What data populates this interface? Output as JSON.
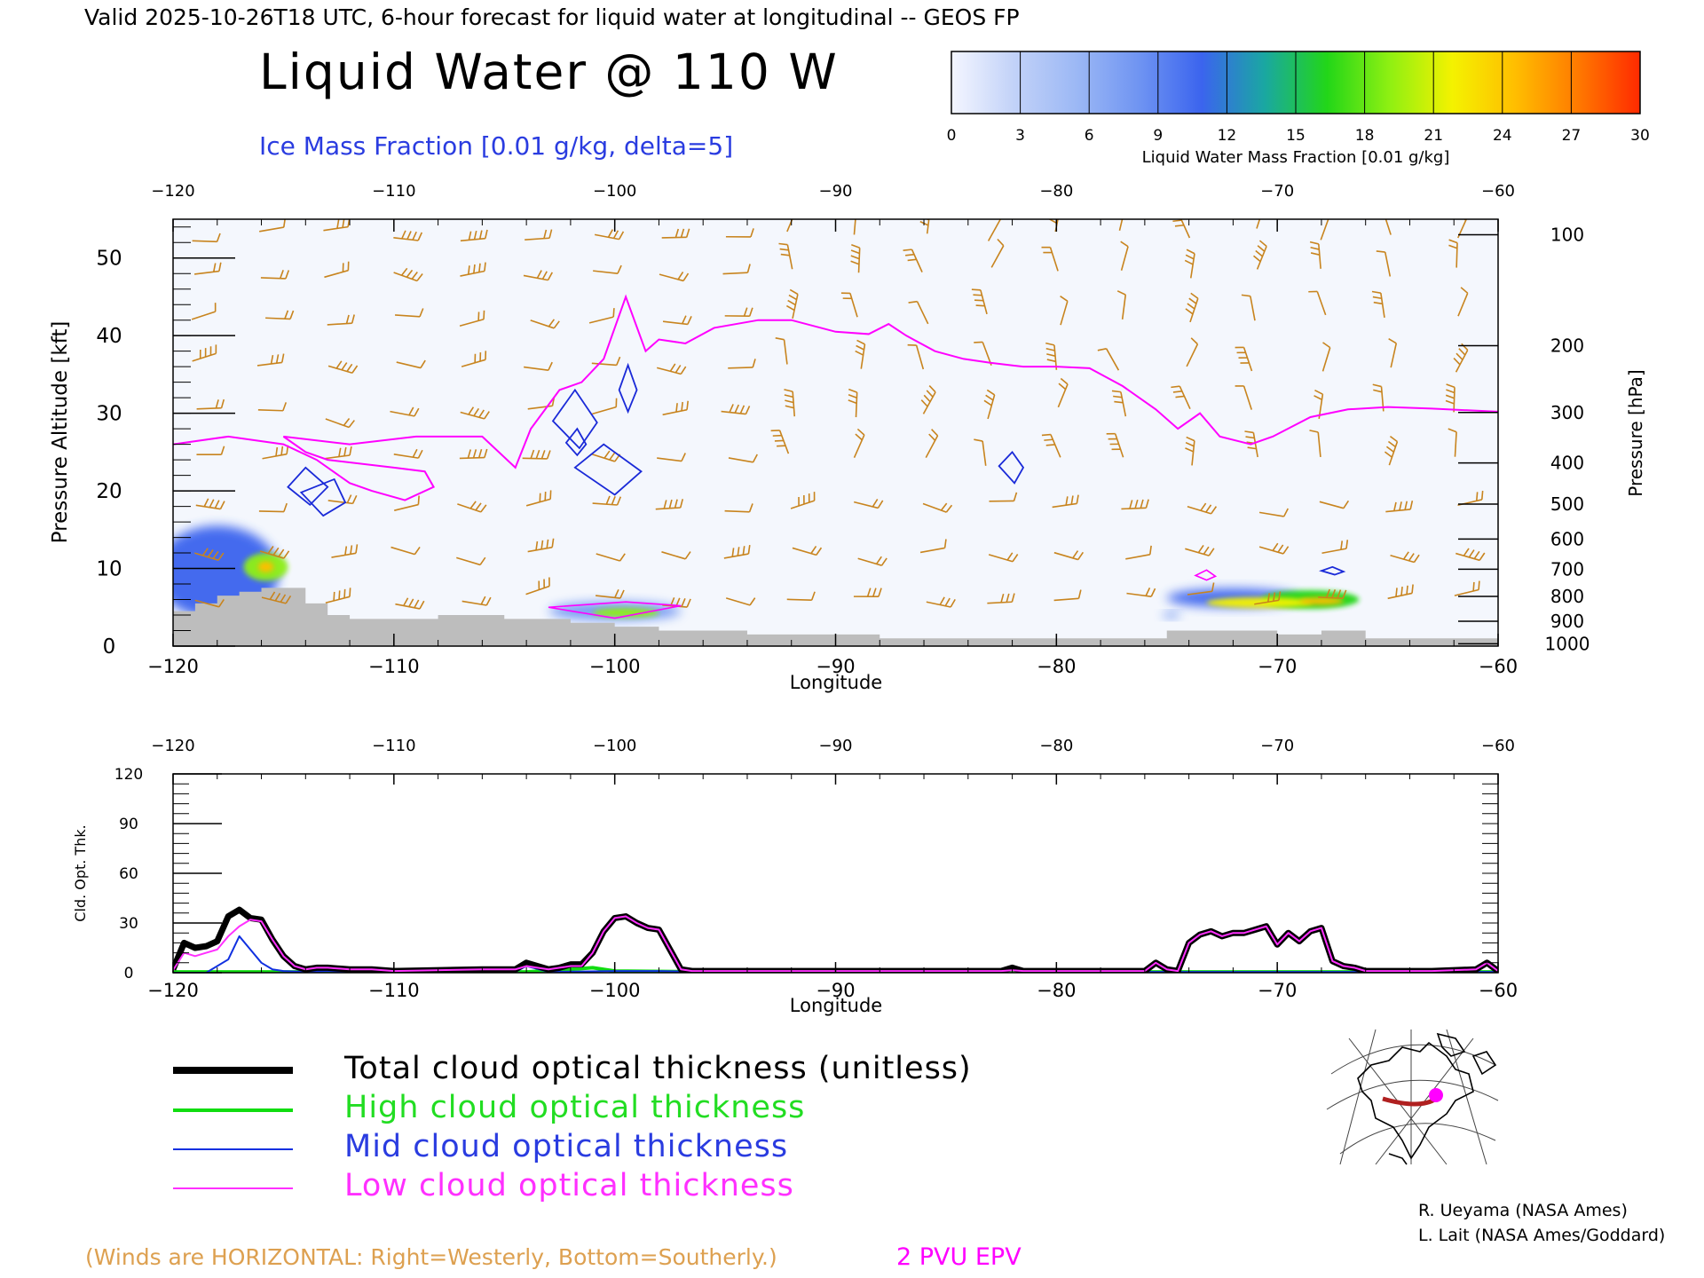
{
  "header": {
    "valid_line": "Valid 2025-10-26T18 UTC, 6-hour forecast for liquid water at longitudinal -- GEOS FP",
    "main_title": "Liquid Water @ 110 W",
    "ice_label": "Ice Mass Fraction [0.01 g/kg, delta=5]"
  },
  "colorbar": {
    "label": "Liquid Water Mass Fraction [0.01 g/kg]",
    "ticks": [
      "0",
      "3",
      "6",
      "9",
      "12",
      "15",
      "18",
      "21",
      "24",
      "27",
      "30"
    ],
    "colors": [
      "#f4f6ff",
      "#c2d2f8",
      "#9cb8f5",
      "#6f94f2",
      "#3b64ee",
      "#1aa7a2",
      "#22d618",
      "#8ff012",
      "#f4f200",
      "#ffbe00",
      "#ff7a00",
      "#ff2a00"
    ]
  },
  "colors": {
    "wind": "#c8841e",
    "epv": "#ff00ff",
    "ice": "#1a2ad8",
    "terrain": "#bdbdbd",
    "background": "#f4f7fd",
    "total": "#000000",
    "high": "#10dd10",
    "mid": "#1030e0",
    "low": "#ff30ff",
    "map_track": "#b02020",
    "map_point": "#ff00ff"
  },
  "chart_data": [
    {
      "type": "heatmap",
      "title": "Liquid Water @ 110 W",
      "xlabel": "Longitude",
      "ylabel": "Pressure Altitude [kft]",
      "y2label": "Pressure [hPa]",
      "xlim": [
        -120,
        -60
      ],
      "ylim": [
        0,
        55
      ],
      "x_ticks": [
        -120,
        -110,
        -100,
        -90,
        -80,
        -70,
        -60
      ],
      "x_tick_labels": [
        "−120",
        "−110",
        "−100",
        "−90",
        "−80",
        "−70",
        "−60"
      ],
      "y_ticks": [
        0,
        10,
        20,
        30,
        40,
        50
      ],
      "pressure_ticks": [
        {
          "label": "100",
          "kft": 53.0
        },
        {
          "label": "200",
          "kft": 38.7
        },
        {
          "label": "300",
          "kft": 30.1
        },
        {
          "label": "400",
          "kft": 23.6
        },
        {
          "label": "500",
          "kft": 18.3
        },
        {
          "label": "600",
          "kft": 13.8
        },
        {
          "label": "700",
          "kft": 9.9
        },
        {
          "label": "800",
          "kft": 6.4
        },
        {
          "label": "900",
          "kft": 3.2
        },
        {
          "label": "1000",
          "kft": 0.3
        }
      ],
      "liquid_water_blobs": [
        {
          "lon": -118.0,
          "kft": 9.5,
          "rx": 2.8,
          "ry": 6.0,
          "level": 4
        },
        {
          "lon": -115.8,
          "kft": 10.2,
          "rx": 1.0,
          "ry": 1.8,
          "level": 7
        },
        {
          "lon": -115.8,
          "kft": 10.2,
          "rx": 0.35,
          "ry": 0.7,
          "level": 9
        },
        {
          "lon": -100.0,
          "kft": 4.5,
          "rx": 3.0,
          "ry": 1.2,
          "level": 3
        },
        {
          "lon": -99.5,
          "kft": 4.3,
          "rx": 1.5,
          "ry": 0.6,
          "level": 7
        },
        {
          "lon": -72.0,
          "kft": 6.2,
          "rx": 3.0,
          "ry": 1.2,
          "level": 4
        },
        {
          "lon": -68.5,
          "kft": 6.0,
          "rx": 2.2,
          "ry": 1.2,
          "level": 6
        },
        {
          "lon": -70.8,
          "kft": 5.6,
          "rx": 2.4,
          "ry": 0.7,
          "level": 8
        },
        {
          "lon": -68.0,
          "kft": 5.8,
          "rx": 1.0,
          "ry": 0.5,
          "level": 9
        },
        {
          "lon": -74.8,
          "kft": 4.0,
          "rx": 0.4,
          "ry": 0.4,
          "level": 3
        }
      ],
      "epv_2pvu": {
        "lon": [
          -120,
          -117.5,
          -115,
          -113.5,
          -112,
          -111,
          -109.5,
          -108.2,
          -108.6,
          -110,
          -113,
          -114,
          -115,
          -112,
          -109,
          -106,
          -104.5,
          -103.8,
          -102.5,
          -101.5,
          -100.5,
          -99.5,
          -98.6,
          -98,
          -96.8,
          -95.5,
          -93.5,
          -92,
          -90,
          -88.5,
          -87.6,
          -86.8,
          -85.5,
          -84.2,
          -83,
          -81.5,
          -80,
          -78.5,
          -77,
          -75.5,
          -74.5,
          -73.5,
          -72.6,
          -71.2,
          -70.2,
          -68.5,
          -66.8,
          -65,
          -63,
          -60
        ],
        "kft": [
          26,
          27,
          26,
          24,
          21,
          20,
          18.8,
          20.5,
          22.5,
          23,
          24,
          25,
          27,
          26,
          27,
          27,
          23,
          28,
          33,
          34,
          37,
          45,
          38,
          39.5,
          39,
          41,
          42,
          42,
          40.5,
          40.2,
          41.5,
          40,
          38,
          37,
          36.5,
          36,
          36,
          35.8,
          33.5,
          30.5,
          28,
          30,
          27,
          26,
          27,
          29.5,
          30.5,
          30.8,
          30.6,
          30.2
        ]
      },
      "ice_contours": [
        [
          [
            -114.0,
            23.0
          ],
          [
            -113.0,
            20.5
          ],
          [
            -113.8,
            18.2
          ],
          [
            -114.8,
            20.5
          ]
        ],
        [
          [
            -112.7,
            21.5
          ],
          [
            -112.2,
            18.5
          ],
          [
            -113.2,
            16.8
          ],
          [
            -114.2,
            19.8
          ]
        ],
        [
          [
            -101.8,
            33.0
          ],
          [
            -100.8,
            28.8
          ],
          [
            -101.6,
            25.5
          ],
          [
            -102.8,
            29.0
          ]
        ],
        [
          [
            -101.7,
            28.0
          ],
          [
            -101.3,
            26.0
          ],
          [
            -101.7,
            24.6
          ],
          [
            -102.2,
            26.2
          ]
        ],
        [
          [
            -99.4,
            36.2
          ],
          [
            -99.0,
            33.0
          ],
          [
            -99.4,
            30.2
          ],
          [
            -99.8,
            33.0
          ]
        ],
        [
          [
            -100.5,
            26.0
          ],
          [
            -98.8,
            22.5
          ],
          [
            -100.0,
            19.5
          ],
          [
            -101.8,
            23.0
          ]
        ],
        [
          [
            -82.0,
            25.0
          ],
          [
            -81.5,
            23.0
          ],
          [
            -81.9,
            21.0
          ],
          [
            -82.6,
            23.2
          ]
        ],
        [
          [
            -67.5,
            10.2
          ],
          [
            -67.0,
            9.6
          ],
          [
            -67.4,
            9.2
          ],
          [
            -68.0,
            9.7
          ]
        ]
      ],
      "epv_small_loops": [
        [
          [
            -99.5,
            5.7
          ],
          [
            -97.0,
            5.2
          ],
          [
            -100.0,
            3.6
          ],
          [
            -103.0,
            5.0
          ]
        ],
        [
          [
            -73.2,
            9.8
          ],
          [
            -72.8,
            9.0
          ],
          [
            -73.2,
            8.5
          ],
          [
            -73.7,
            9.1
          ]
        ]
      ],
      "terrain": {
        "lon": [
          -120,
          -119,
          -118,
          -117,
          -116,
          -115,
          -114,
          -113,
          -112,
          -110,
          -108,
          -105,
          -102,
          -100,
          -98,
          -96,
          -94,
          -90,
          -88,
          -85,
          -80,
          -76,
          -75,
          -72,
          -70,
          -68,
          -66,
          -60
        ],
        "kft": [
          4.5,
          5.5,
          6.5,
          7,
          7.5,
          7.5,
          5.5,
          4,
          3.5,
          3.5,
          4,
          3.5,
          3,
          2.5,
          2,
          2,
          1.5,
          1.5,
          1,
          1,
          1,
          1,
          2,
          2,
          1.5,
          2,
          1,
          0.3
        ]
      },
      "wind_barbs": {
        "lons": [
          -119,
          -116,
          -113,
          -110,
          -107,
          -104,
          -101,
          -98,
          -95,
          -92,
          -89,
          -86,
          -83,
          -80,
          -77,
          -74,
          -71,
          -68,
          -65,
          -62
        ],
        "kft": [
          6,
          12,
          18,
          24,
          30,
          36,
          42,
          48,
          53
        ],
        "count": 180
      }
    },
    {
      "type": "line",
      "xlabel": "Longitude",
      "ylabel": "Cld. Opt. Thk.",
      "xlim": [
        -120,
        -60
      ],
      "ylim": [
        0,
        120
      ],
      "x_ticks": [
        -120,
        -110,
        -100,
        -90,
        -80,
        -70,
        -60
      ],
      "x_tick_labels": [
        "−120",
        "−110",
        "−100",
        "−90",
        "−80",
        "−70",
        "−60"
      ],
      "y_ticks": [
        0,
        30,
        60,
        90,
        120
      ],
      "series": [
        {
          "name": "Total cloud optical thickness (unitless)",
          "key": "total",
          "x": [
            -120,
            -119.5,
            -119,
            -118.5,
            -118,
            -117.5,
            -117,
            -116.5,
            -116,
            -115.5,
            -115,
            -114.5,
            -114,
            -113.5,
            -113,
            -112,
            -111,
            -110,
            -106,
            -104.5,
            -104,
            -103,
            -102.5,
            -102,
            -101.5,
            -101,
            -100.5,
            -100,
            -99.5,
            -99,
            -98.5,
            -98,
            -97.5,
            -97,
            -96.5,
            -96,
            -90,
            -82.5,
            -82,
            -81.5,
            -76,
            -75.5,
            -75,
            -74.5,
            -74,
            -73.5,
            -73,
            -72.5,
            -72,
            -71.5,
            -71,
            -70.5,
            -70,
            -69.5,
            -69,
            -68.5,
            -68,
            -67.5,
            -67,
            -66.5,
            -66,
            -65,
            -63,
            -61,
            -60.5,
            -60
          ],
          "y": [
            2,
            18,
            15,
            16,
            19,
            34,
            38,
            33,
            32,
            20,
            10,
            4,
            2,
            3,
            3,
            2,
            2,
            1,
            2,
            2,
            6,
            2,
            3,
            5,
            5,
            12,
            25,
            33,
            34,
            30,
            27,
            26,
            14,
            2,
            1,
            1,
            1,
            1,
            3,
            1,
            1,
            6,
            2,
            1,
            18,
            23,
            25,
            22,
            24,
            24,
            26,
            28,
            17,
            24,
            19,
            25,
            27,
            7,
            4,
            3,
            1,
            1,
            1,
            2,
            6,
            1
          ]
        },
        {
          "name": "High cloud optical thickness",
          "key": "high",
          "x": [
            -120,
            -110,
            -104,
            -102,
            -101,
            -100,
            -96,
            -90,
            -80,
            -70,
            -60
          ],
          "y": [
            0.5,
            0.5,
            0.5,
            2,
            3,
            1,
            0.5,
            0.5,
            0.5,
            0.5,
            0.5
          ]
        },
        {
          "name": "Mid cloud optical thickness",
          "key": "mid",
          "x": [
            -120,
            -118.5,
            -117.5,
            -117,
            -116.5,
            -116,
            -115.5,
            -115,
            -114,
            -113,
            -112,
            -104.5,
            -104,
            -103,
            -100,
            -98,
            -96,
            -90,
            -82.5,
            -82,
            -81.5,
            -60
          ],
          "y": [
            0,
            0,
            8,
            22,
            14,
            6,
            2,
            1,
            0.5,
            1,
            0.5,
            0.5,
            4,
            0.5,
            1,
            1,
            0.5,
            0.5,
            0.5,
            2,
            0.5,
            0.5
          ]
        },
        {
          "name": "Low cloud optical thickness",
          "key": "low",
          "x": [
            -120,
            -119.5,
            -119,
            -118.5,
            -118,
            -117.5,
            -117,
            -116.5,
            -116,
            -115.5,
            -115,
            -114.5,
            -114,
            -113.5,
            -113,
            -112,
            -111,
            -110,
            -106,
            -104.5,
            -104,
            -103,
            -102.5,
            -102,
            -101.5,
            -101,
            -100.5,
            -100,
            -99.5,
            -99,
            -98.5,
            -98,
            -97.5,
            -97,
            -96.5,
            -96,
            -90,
            -82.5,
            -82,
            -81.5,
            -76,
            -75.5,
            -75,
            -74.5,
            -74,
            -73.5,
            -73,
            -72.5,
            -72,
            -71.5,
            -71,
            -70.5,
            -70,
            -69.5,
            -69,
            -68.5,
            -68,
            -67.5,
            -67,
            -66.5,
            -66,
            -65,
            -63,
            -61,
            -60.5,
            -60
          ],
          "y": [
            1.5,
            12,
            10,
            12,
            14,
            22,
            28,
            32,
            31,
            20,
            10,
            4,
            2,
            3,
            3,
            2,
            2,
            1,
            2,
            2,
            4,
            2,
            3,
            4,
            4,
            12,
            25,
            33,
            34,
            30,
            27,
            26,
            14,
            2,
            1,
            1,
            1,
            1,
            1.5,
            1,
            1,
            6,
            2,
            1,
            18,
            23,
            25,
            22,
            24,
            24,
            26,
            28,
            17,
            24,
            19,
            25,
            27,
            7,
            4,
            3,
            1,
            1,
            1,
            2,
            6,
            1
          ]
        }
      ]
    }
  ],
  "legend": {
    "total": "Total cloud optical thickness (unitless)",
    "high": "High cloud optical thickness",
    "mid": "Mid cloud optical thickness",
    "low": "Low cloud optical thickness"
  },
  "footer": {
    "winds_note": "(Winds are HORIZONTAL: Right=Westerly, Bottom=Southerly.)",
    "epv_label": "2 PVU EPV",
    "credit1": "R. Ueyama (NASA Ames)",
    "credit2": "L. Lait (NASA Ames/Goddard)"
  },
  "map": {
    "icon": "globe-inset-map",
    "point_lon": -60,
    "track_lon": [
      -120,
      -60
    ]
  }
}
